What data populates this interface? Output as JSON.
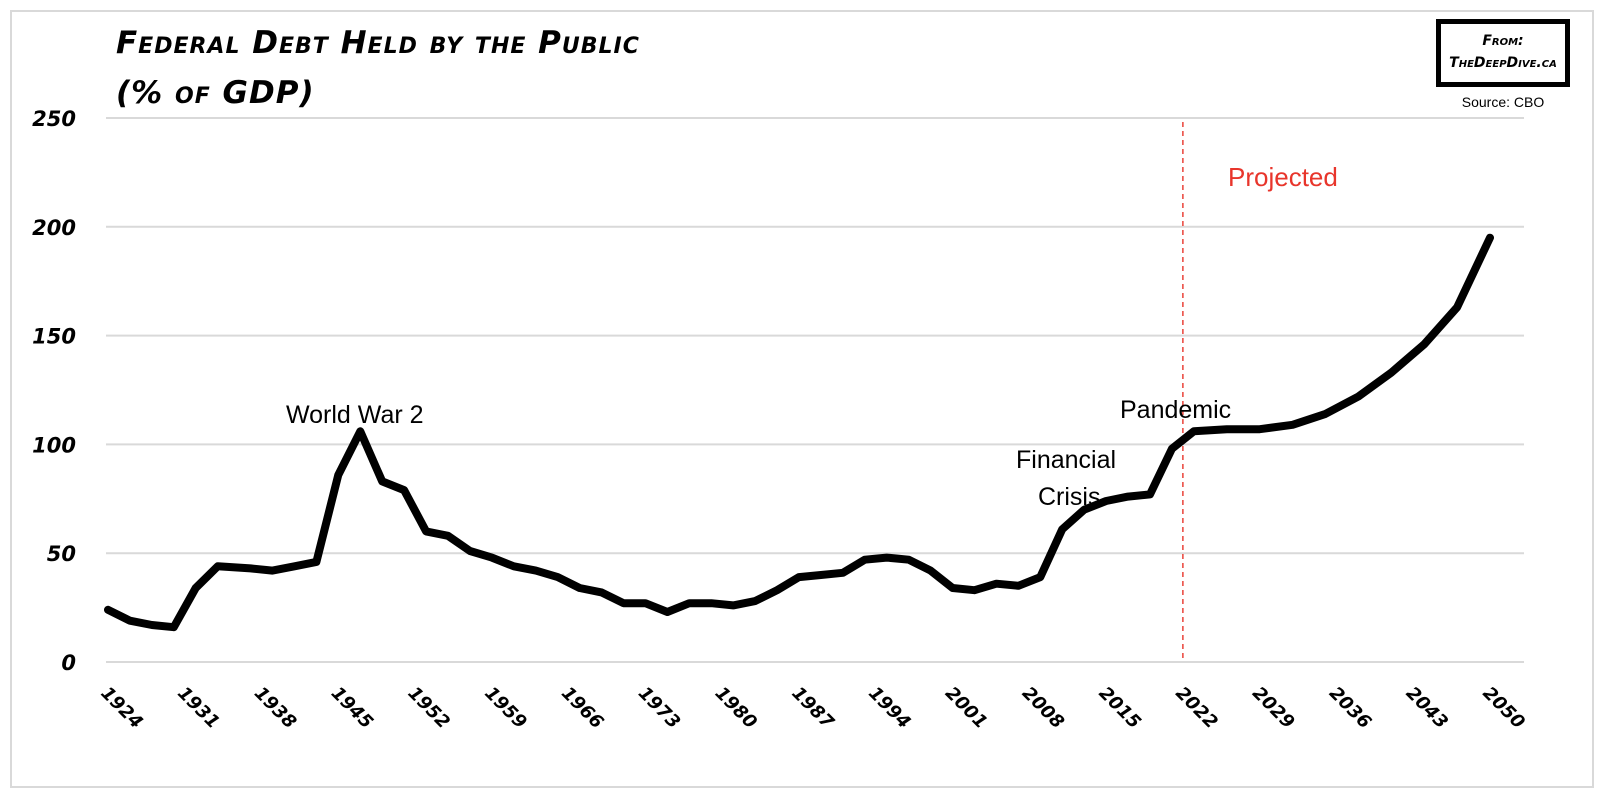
{
  "header": {
    "title_line1": "Federal Debt Held by the Public",
    "title_line2": "(% of GDP)"
  },
  "badge": {
    "line1": "From:",
    "line2": "TheDeepDive.ca"
  },
  "source": "Source: CBO",
  "annotations": {
    "ww2": "World War 2",
    "financial_line1": "Financial",
    "financial_line2": "Crisis",
    "pandemic": "Pandemic",
    "projected": "Projected"
  },
  "colors": {
    "line": "#000000",
    "grid": "#d9d9d9",
    "projected": "#e8352b"
  },
  "chart_data": {
    "type": "line",
    "title": "Federal Debt Held by the Public (% of GDP)",
    "xlabel": "",
    "ylabel": "",
    "ylim": [
      0,
      250
    ],
    "yticks": [
      0,
      50,
      100,
      150,
      200,
      250
    ],
    "xticks": [
      "1924",
      "1931",
      "1938",
      "1945",
      "1952",
      "1959",
      "1966",
      "1973",
      "1980",
      "1987",
      "1994",
      "2001",
      "2008",
      "2015",
      "2022",
      "2029",
      "2036",
      "2043",
      "2050"
    ],
    "grid": true,
    "legend": "none",
    "projection_start": 2022,
    "annotations": [
      {
        "text": "World War 2",
        "x": 1945
      },
      {
        "text": "Financial Crisis",
        "x": 2008
      },
      {
        "text": "Pandemic",
        "x": 2020
      },
      {
        "text": "Projected",
        "x": 2022
      }
    ],
    "series": [
      {
        "name": "Federal Debt Held by the Public (% of GDP)",
        "x": [
          1924,
          1926,
          1928,
          1930,
          1932,
          1934,
          1937,
          1939,
          1941,
          1943,
          1945,
          1947,
          1949,
          1951,
          1953,
          1955,
          1957,
          1959,
          1961,
          1963,
          1965,
          1967,
          1969,
          1971,
          1973,
          1975,
          1977,
          1979,
          1981,
          1983,
          1985,
          1987,
          1989,
          1991,
          1993,
          1995,
          1997,
          1999,
          2001,
          2003,
          2005,
          2007,
          2009,
          2011,
          2013,
          2015,
          2017,
          2019,
          2021,
          2023,
          2026,
          2029,
          2032,
          2035,
          2038,
          2041,
          2044,
          2047,
          2050
        ],
        "values": [
          24,
          19,
          17,
          16,
          34,
          44,
          43,
          42,
          44,
          46,
          86,
          106,
          83,
          79,
          60,
          58,
          51,
          48,
          44,
          42,
          39,
          34,
          32,
          27,
          27,
          23,
          27,
          27,
          26,
          28,
          33,
          39,
          40,
          41,
          47,
          48,
          47,
          42,
          34,
          33,
          36,
          35,
          39,
          61,
          70,
          74,
          76,
          77,
          98,
          106,
          107,
          107,
          109,
          114,
          122,
          133,
          146,
          163,
          195
        ]
      }
    ]
  }
}
